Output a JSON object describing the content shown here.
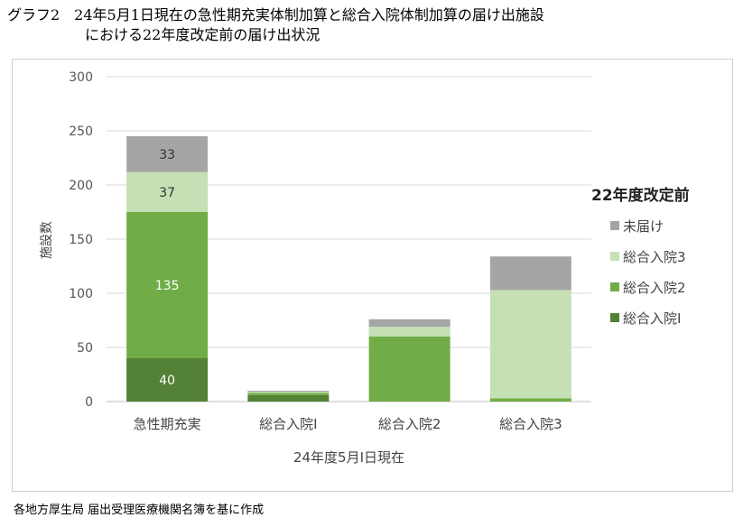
{
  "title": {
    "line1": "グラフ2　24年5月1日現在の急性期充実体制加算と総合入院体制加算の届け出施設",
    "line2": "における22年度改定前の届け出状況"
  },
  "source": "各地方厚生局 届出受理医療機関名簿を基に作成",
  "colors": {
    "総合入院1": "#538135",
    "総合入院2": "#70ad47",
    "総合入院3": "#c5e0b4",
    "未届け": "#a5a5a5"
  },
  "chart_data": {
    "type": "bar",
    "stacked": true,
    "categories": [
      "急性期充実",
      "総合入院Ⅰ",
      "総合入院2",
      "総合入院3"
    ],
    "series": [
      {
        "name": "総合入院Ⅰ",
        "values": [
          40,
          6,
          0,
          0
        ]
      },
      {
        "name": "総合入院2",
        "values": [
          135,
          2,
          60,
          3
        ]
      },
      {
        "name": "総合入院3",
        "values": [
          37,
          1,
          9,
          100
        ]
      },
      {
        "name": "未届け",
        "values": [
          33,
          1,
          7,
          31
        ]
      }
    ],
    "data_labels": [
      [
        "40",
        "",
        "",
        ""
      ],
      [
        "135",
        "",
        "",
        ""
      ],
      [
        "37",
        "",
        "",
        ""
      ],
      [
        "33",
        "",
        "",
        ""
      ]
    ],
    "xlabel": "24年度5月Ⅰ日現在",
    "ylabel": "施設数",
    "ylim": [
      0,
      300
    ],
    "yticks": [
      0,
      50,
      100,
      150,
      200,
      250,
      300
    ],
    "grid": true,
    "legend": {
      "title": "22年度改定前",
      "placement": "right",
      "entries": [
        "未届け",
        "総合入院3",
        "総合入院2",
        "総合入院Ⅰ"
      ]
    }
  }
}
